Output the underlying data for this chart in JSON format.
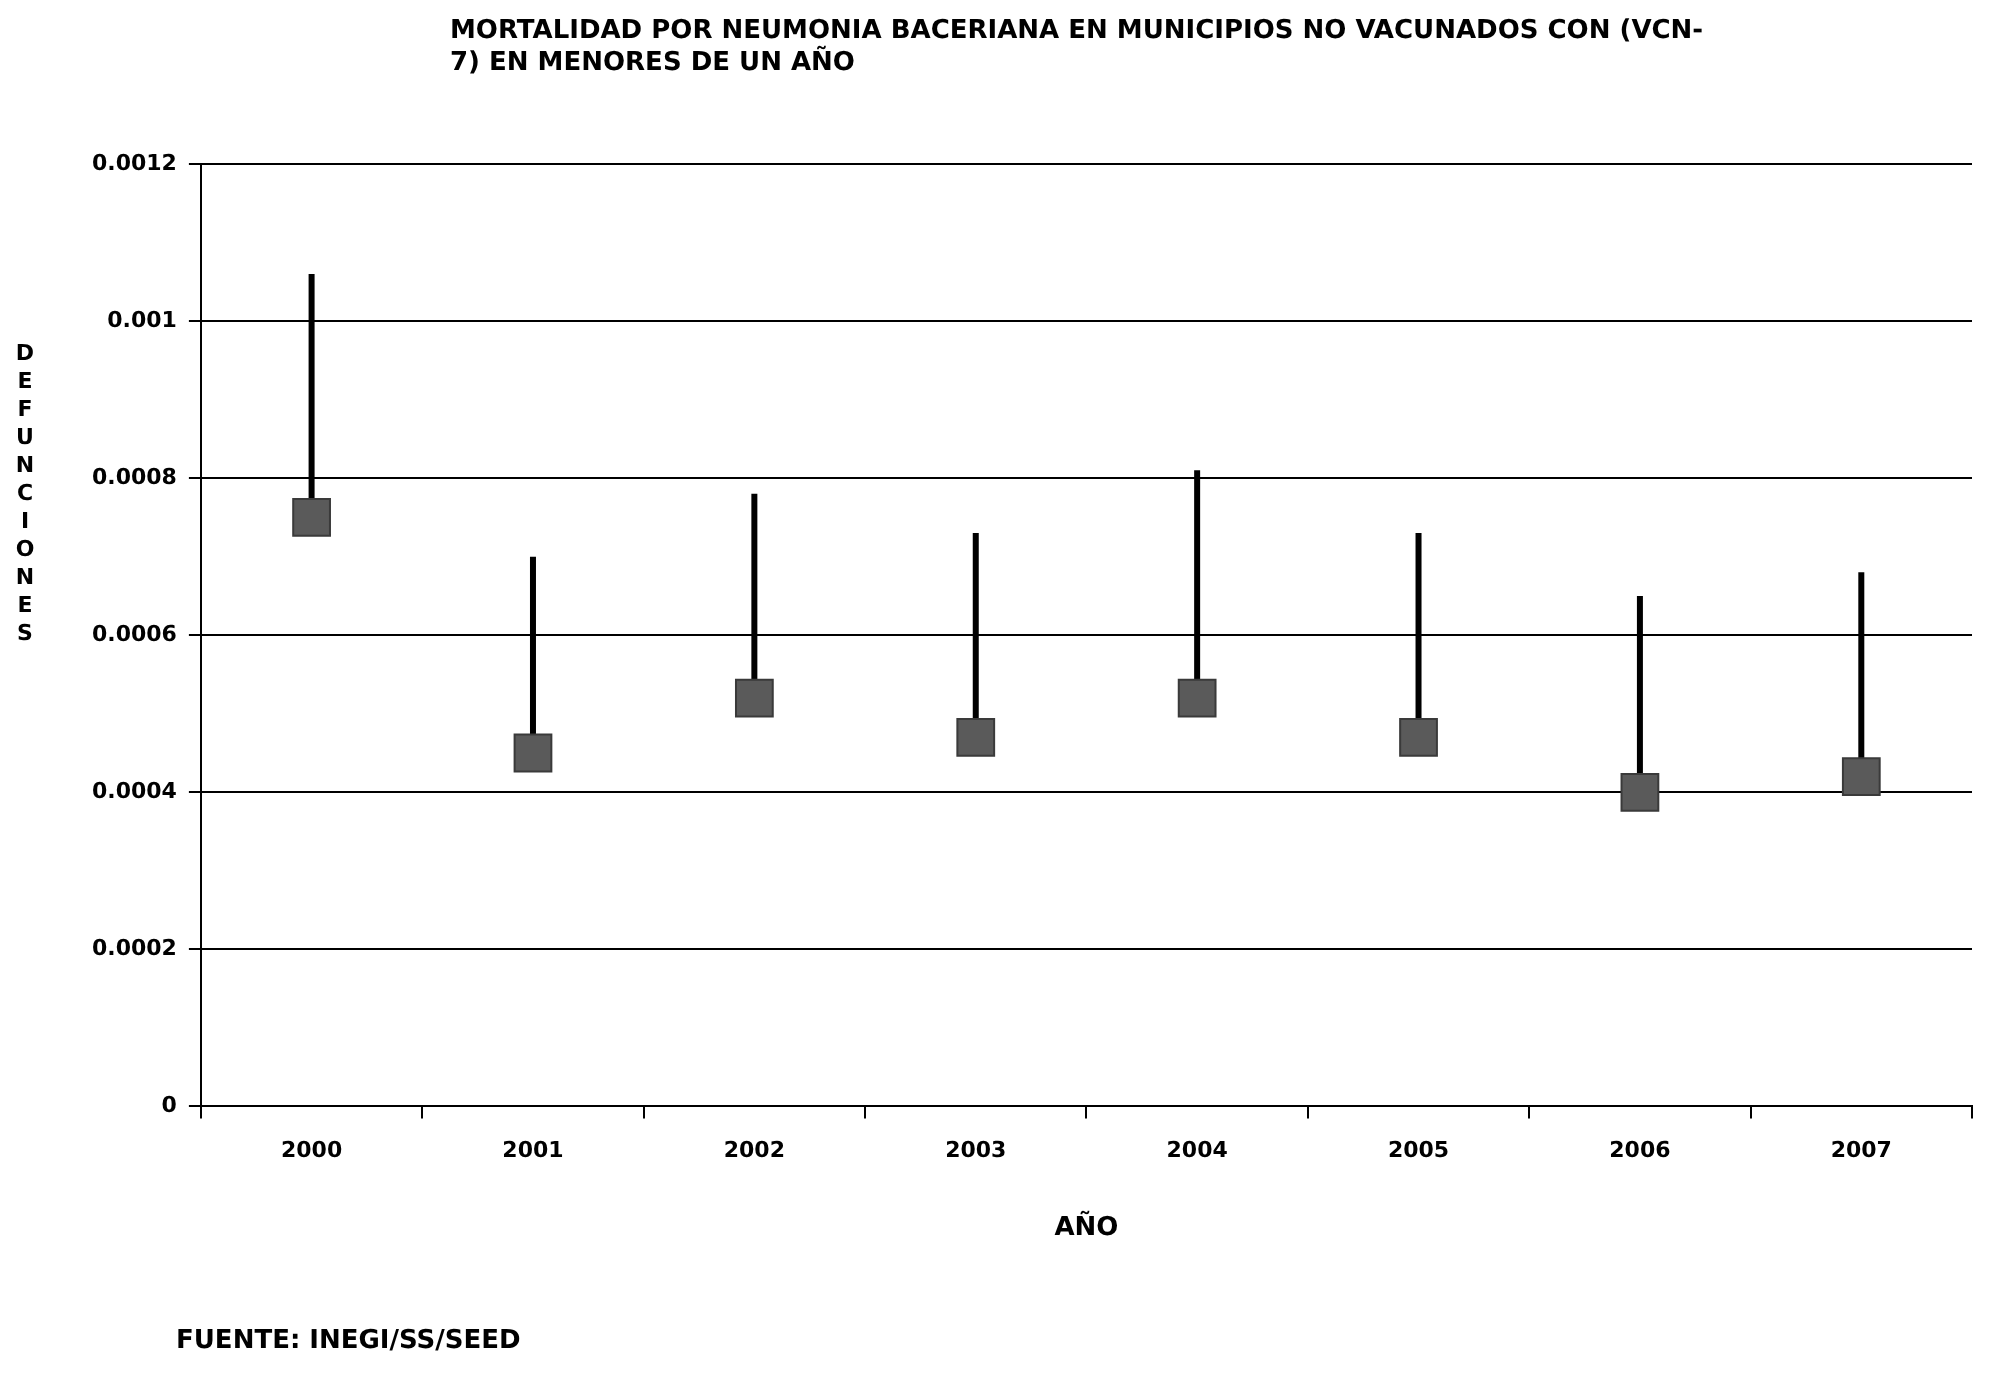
{
  "chart_data": {
    "type": "scatter",
    "title": "MORTALIDAD POR NEUMONIA BACERIANA EN MUNICIPIOS NO VACUNADOS CON (VCN-7) EN MENORES DE UN AÑO",
    "xlabel": "AÑO",
    "ylabel": "DEFUNCIONES",
    "categories": [
      "2000",
      "2001",
      "2002",
      "2003",
      "2004",
      "2005",
      "2006",
      "2007"
    ],
    "series": [
      {
        "color": "#5a5a5a",
        "values": [
          0.00075,
          0.00045,
          0.00052,
          0.00047,
          0.00052,
          0.00047,
          0.0004,
          0.00042
        ],
        "errors": [
          [
            0.00075,
            0.00106
          ],
          [
            0.00045,
            0.0007
          ],
          [
            0.00052,
            0.00078
          ],
          [
            0.00047,
            0.00073
          ],
          [
            0.00052,
            0.00081
          ],
          [
            0.00047,
            0.00073
          ],
          [
            0.0004,
            0.00065
          ],
          [
            0.00042,
            0.00068
          ]
        ]
      }
    ],
    "ylim": [
      0,
      0.0012
    ],
    "yticks": [
      0,
      0.0002,
      0.0004,
      0.0006,
      0.0008,
      0.001,
      0.0012
    ],
    "grid": "y",
    "legend": false,
    "marker": "square",
    "annotations": [
      "FUENTE: INEGI/SS/SEED"
    ]
  }
}
